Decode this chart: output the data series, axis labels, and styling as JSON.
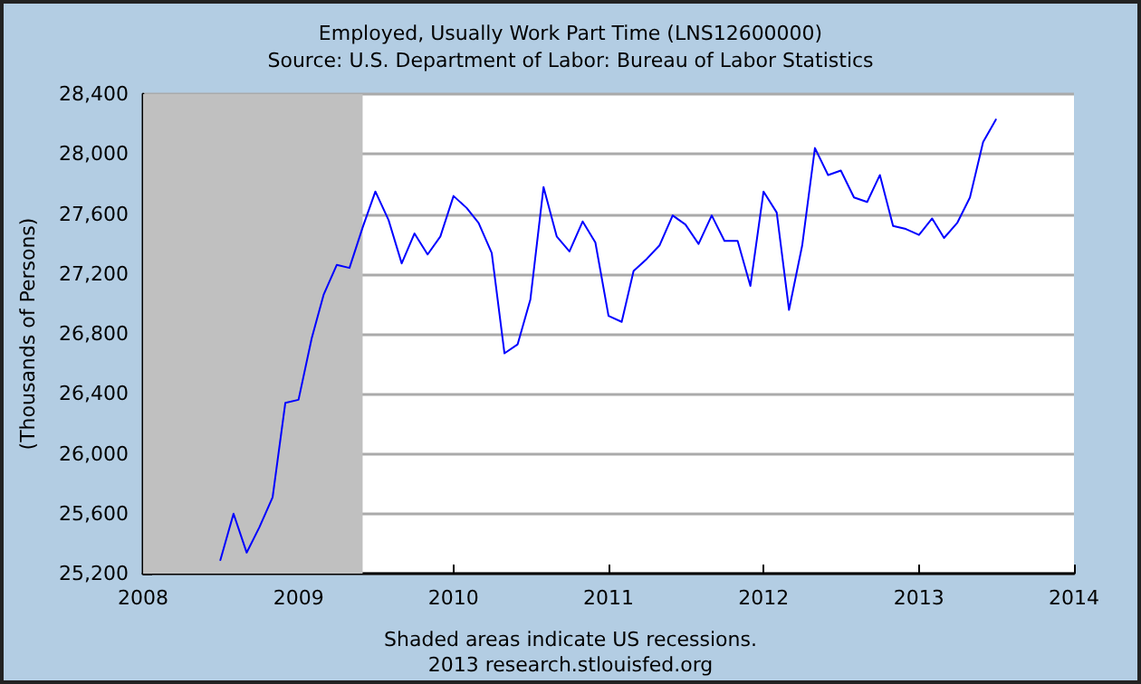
{
  "chart_data": {
    "type": "line",
    "title": "Employed, Usually Work Part Time (LNS12600000)",
    "subtitle": "Source: U.S. Department of Labor: Bureau of Labor Statistics",
    "ylabel": "(Thousands of Persons)",
    "annotations": [
      "Shaded areas indicate US recessions.",
      "2013 research.stlouisfed.org"
    ],
    "x": [
      "2008-07",
      "2008-08",
      "2008-09",
      "2008-10",
      "2008-11",
      "2008-12",
      "2009-01",
      "2009-02",
      "2009-03",
      "2009-04",
      "2009-05",
      "2009-06",
      "2009-07",
      "2009-08",
      "2009-09",
      "2009-10",
      "2009-11",
      "2009-12",
      "2010-01",
      "2010-02",
      "2010-03",
      "2010-04",
      "2010-05",
      "2010-06",
      "2010-07",
      "2010-08",
      "2010-09",
      "2010-10",
      "2010-11",
      "2010-12",
      "2011-01",
      "2011-02",
      "2011-03",
      "2011-04",
      "2011-05",
      "2011-06",
      "2011-07",
      "2011-08",
      "2011-09",
      "2011-10",
      "2011-11",
      "2011-12",
      "2012-01",
      "2012-02",
      "2012-03",
      "2012-04",
      "2012-05",
      "2012-06",
      "2012-07",
      "2012-08",
      "2012-09",
      "2012-10",
      "2012-11",
      "2012-12",
      "2013-01",
      "2013-02",
      "2013-03",
      "2013-04",
      "2013-05",
      "2013-06",
      "2013-07"
    ],
    "series": [
      {
        "color": "#0000ff",
        "values": [
          25290,
          25600,
          25340,
          25510,
          25710,
          26340,
          26360,
          26770,
          27060,
          27260,
          27240,
          27510,
          27750,
          27560,
          27270,
          27470,
          27330,
          27450,
          27720,
          27640,
          27540,
          27340,
          26670,
          26730,
          27030,
          27780,
          27450,
          27350,
          27550,
          27410,
          26920,
          26880,
          27220,
          27300,
          27390,
          27590,
          27530,
          27400,
          27590,
          27420,
          27420,
          27120,
          27750,
          27610,
          26960,
          27390,
          28040,
          27860,
          27890,
          27710,
          27680,
          27860,
          27520,
          27500,
          27460,
          27570,
          27440,
          27540,
          27710,
          28080,
          28230
        ]
      }
    ],
    "xlim": [
      "2008",
      "2014"
    ],
    "xticks": [
      {
        "value": "2008",
        "label": "2008"
      },
      {
        "value": "2009",
        "label": "2009"
      },
      {
        "value": "2010",
        "label": "2010"
      },
      {
        "value": "2011",
        "label": "2011"
      },
      {
        "value": "2012",
        "label": "2012"
      },
      {
        "value": "2013",
        "label": "2013"
      },
      {
        "value": "2014",
        "label": "2014"
      }
    ],
    "ylim": [
      25200,
      28400
    ],
    "yticks": [
      {
        "value": 25200,
        "label": "25,200"
      },
      {
        "value": 25600,
        "label": "25,600"
      },
      {
        "value": 26000,
        "label": "26,000"
      },
      {
        "value": 26400,
        "label": "26,400"
      },
      {
        "value": 26800,
        "label": "26,800"
      },
      {
        "value": 27200,
        "label": "27,200"
      },
      {
        "value": 27600,
        "label": "27,600"
      },
      {
        "value": 28000,
        "label": "28,000"
      },
      {
        "value": 28400,
        "label": "28,400"
      }
    ],
    "bands": [
      {
        "axis": "x",
        "from": "2008",
        "to": "2009-06",
        "color": "#c0c0c0"
      }
    ],
    "grid": "y",
    "marker": "none",
    "line_style": "solid"
  }
}
